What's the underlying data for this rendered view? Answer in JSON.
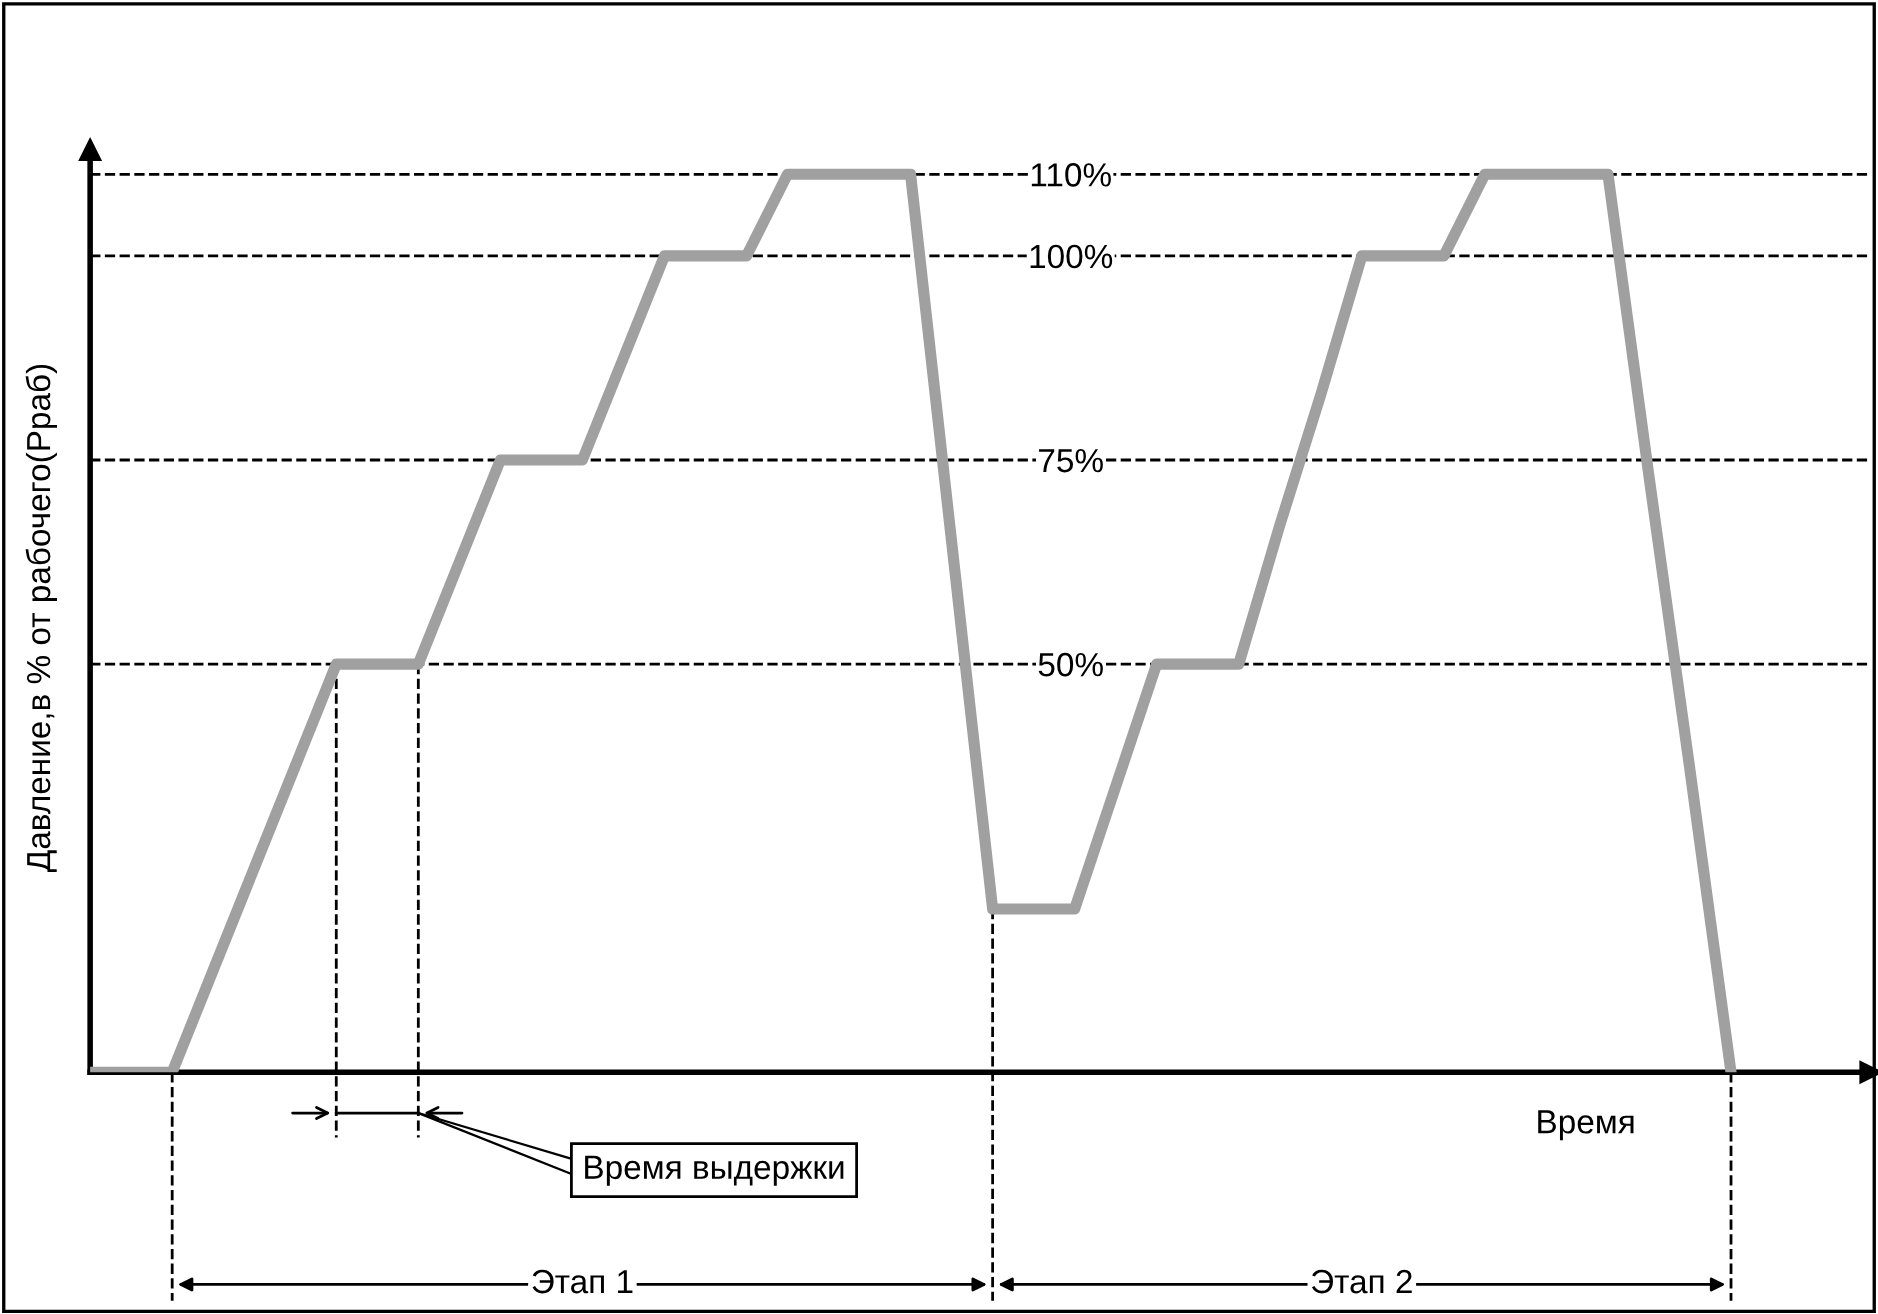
{
  "chart_data": {
    "type": "line",
    "xlabel": "Время",
    "ylabel": "Давление,в % от рабочего(Рраб)",
    "categories": [
      null,
      null,
      null,
      null,
      null,
      null,
      null,
      null,
      null,
      null,
      null,
      null,
      null,
      null,
      null,
      null,
      null,
      null,
      null,
      null,
      null,
      null,
      null,
      null,
      null,
      null,
      null,
      null,
      null,
      null,
      null,
      null,
      null,
      null,
      null,
      null,
      null,
      null,
      null,
      null,
      null
    ],
    "series": [
      {
        "color": "#a0a0a0",
        "values": [
          0,
          0,
          0,
          12.5,
          25,
          37.5,
          50,
          50,
          50,
          62.5,
          75,
          75,
          75,
          87.5,
          100,
          100,
          100,
          110,
          110,
          110,
          110,
          65,
          20,
          20,
          20,
          35,
          50,
          50,
          50,
          67,
          83,
          100,
          100,
          100,
          110,
          110,
          110,
          110,
          73,
          37,
          0
        ]
      }
    ],
    "ylim": [
      0,
      113
    ],
    "yticks": [
      {
        "value": 50,
        "label": "50%"
      },
      {
        "value": 75,
        "label": "75%"
      },
      {
        "value": 100,
        "label": "100%"
      },
      {
        "value": 110,
        "label": "110%"
      }
    ],
    "tick_labels": "y",
    "ref_lines": [
      {
        "axis": "y",
        "value": 110,
        "line_style": "dashed",
        "color": "#000000"
      },
      {
        "axis": "y",
        "value": 100,
        "line_style": "dashed",
        "color": "#000000"
      },
      {
        "axis": "y",
        "value": 75,
        "line_style": "dashed",
        "color": "#000000"
      },
      {
        "axis": "y",
        "value": 50,
        "line_style": "dashed",
        "color": "#000000"
      }
    ],
    "annotations": [
      "Время выдержки",
      "Этап 1",
      "Этап 2"
    ],
    "marker": "none",
    "line_style": "solid"
  }
}
